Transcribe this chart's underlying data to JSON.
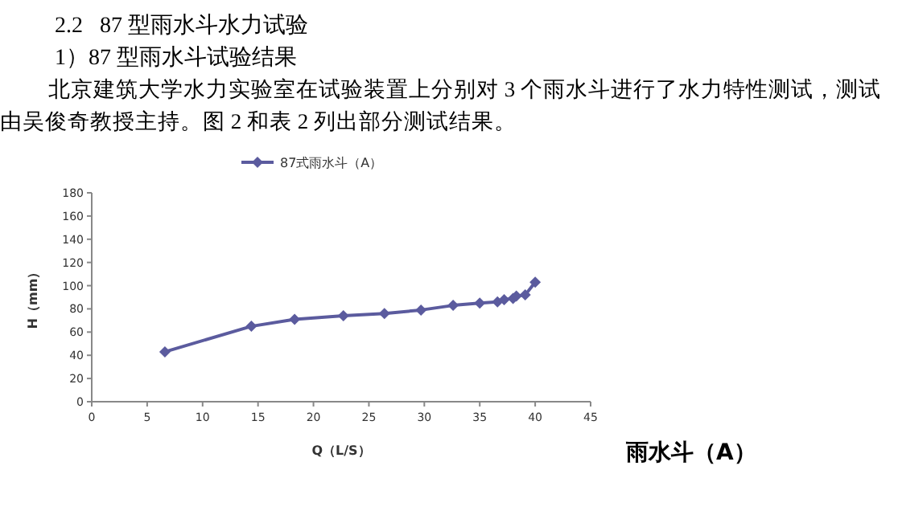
{
  "chart_data": {
    "type": "line",
    "title": "2.2   87 型雨水斗水力试验",
    "subtitle": "1）87 型雨水斗试验结果",
    "annotations": [
      "北京建筑大学水力实验室在试验装置上分别对 3 个雨水斗进行了水力特性测试，测试由吴俊奇教授主持。图 2 和表 2 列出部分测试结果。",
      "雨水斗（A）"
    ],
    "xlabel": "Q（L/S）",
    "ylabel": "H（mm）",
    "x": [
      6.6,
      14.4,
      18.3,
      22.7,
      26.4,
      29.7,
      32.6,
      35,
      36.6,
      37.2,
      38,
      38.3,
      39.1,
      40
    ],
    "series": [
      {
        "name": "87式雨水斗（A）",
        "color": "#5b5b9e",
        "values": [
          43,
          65,
          71,
          74,
          76,
          79,
          83,
          85,
          86,
          88,
          89,
          91,
          92,
          103
        ]
      }
    ],
    "xlim": [
      0,
      45
    ],
    "xticks": [
      0,
      5,
      10,
      15,
      20,
      25,
      30,
      35,
      40,
      45
    ],
    "ylim": [
      0,
      180
    ],
    "yticks": [
      0,
      20,
      40,
      60,
      80,
      100,
      120,
      140,
      160,
      180
    ],
    "marker": "diamond",
    "legend": "top",
    "grid": false
  }
}
